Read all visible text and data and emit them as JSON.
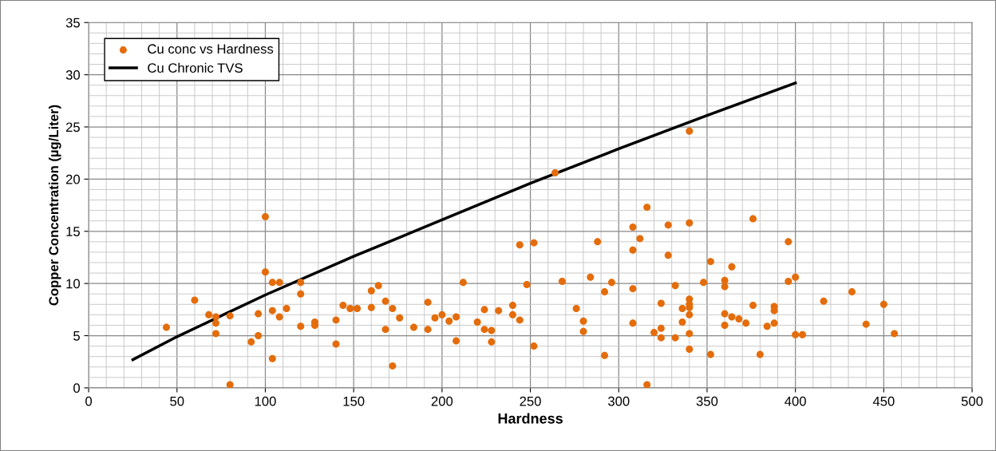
{
  "chart_data": {
    "type": "scatter",
    "xlabel": "Hardness",
    "ylabel": "Copper Concentration (µg/Liter)",
    "xlim": [
      0,
      500
    ],
    "xticks": [
      0,
      50,
      100,
      150,
      200,
      250,
      300,
      350,
      400,
      450,
      500
    ],
    "ylim": [
      0,
      35
    ],
    "yticks": [
      0,
      5,
      10,
      15,
      20,
      25,
      30,
      35
    ],
    "grid": true,
    "legend": "top left",
    "series": [
      {
        "name": "Cu conc vs Hardness",
        "marker": "circle",
        "color": "#e46c0a",
        "x": [
          44,
          60,
          68,
          72,
          72,
          72,
          80,
          80,
          92,
          96,
          96,
          100,
          100,
          104,
          108,
          104,
          108,
          104,
          112,
          120,
          120,
          120,
          128,
          128,
          140,
          140,
          144,
          148,
          152,
          160,
          160,
          164,
          168,
          168,
          172,
          172,
          176,
          184,
          192,
          192,
          196,
          200,
          204,
          208,
          208,
          212,
          220,
          224,
          224,
          228,
          228,
          232,
          240,
          240,
          244,
          244,
          248,
          252,
          252,
          264,
          268,
          276,
          280,
          280,
          284,
          288,
          292,
          292,
          296,
          308,
          308,
          308,
          308,
          312,
          316,
          316,
          320,
          324,
          324,
          324,
          328,
          328,
          332,
          332,
          336,
          336,
          340,
          340,
          340,
          340,
          340,
          340,
          340,
          340,
          348,
          352,
          352,
          360,
          360,
          360,
          360,
          364,
          364,
          368,
          372,
          376,
          376,
          380,
          384,
          388,
          388,
          388,
          396,
          396,
          400,
          400,
          404,
          416,
          432,
          440,
          450,
          456
        ],
        "values": [
          5.8,
          8.4,
          7.0,
          6.8,
          6.2,
          5.2,
          6.9,
          0.3,
          4.4,
          5.0,
          7.1,
          16.4,
          11.1,
          10.1,
          10.1,
          7.4,
          6.8,
          2.8,
          7.6,
          10.1,
          9.0,
          5.9,
          6.3,
          6.0,
          6.5,
          4.2,
          7.9,
          7.6,
          7.6,
          7.7,
          9.3,
          9.8,
          8.3,
          5.6,
          7.6,
          2.1,
          6.7,
          5.8,
          8.2,
          5.6,
          6.7,
          7.0,
          6.4,
          6.8,
          4.5,
          10.1,
          6.3,
          7.5,
          5.6,
          5.5,
          4.4,
          7.4,
          7.9,
          7.0,
          13.7,
          6.5,
          9.9,
          13.9,
          4.0,
          20.6,
          10.2,
          7.6,
          6.4,
          5.4,
          10.6,
          14.0,
          9.2,
          3.1,
          10.1,
          15.4,
          13.2,
          9.5,
          6.2,
          14.3,
          17.3,
          0.3,
          5.3,
          5.7,
          4.8,
          8.1,
          15.6,
          12.7,
          9.8,
          4.8,
          7.6,
          6.3,
          24.6,
          15.8,
          8.5,
          8.0,
          7.7,
          7.0,
          5.2,
          3.7,
          10.1,
          12.1,
          3.2,
          10.3,
          9.7,
          7.1,
          6.0,
          11.6,
          6.8,
          6.6,
          6.2,
          16.2,
          7.9,
          3.2,
          5.9,
          7.8,
          7.4,
          6.2,
          14.0,
          10.2,
          10.6,
          5.1,
          5.1,
          8.3,
          9.2,
          6.1,
          8.0,
          5.2
        ]
      },
      {
        "name": "Cu Chronic TVS",
        "type": "line",
        "marker": "none",
        "line_style": "solid",
        "color": "#000000",
        "x": [
          25,
          50,
          75,
          100,
          150,
          200,
          250,
          300,
          350,
          400
        ],
        "values": [
          2.7,
          4.9,
          6.9,
          8.9,
          12.6,
          16.1,
          19.6,
          22.9,
          26.1,
          29.2
        ]
      }
    ]
  }
}
